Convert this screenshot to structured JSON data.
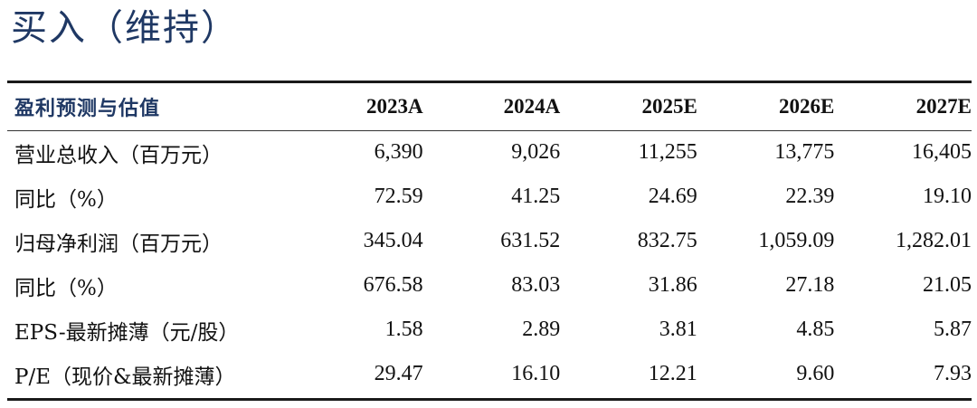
{
  "rating": {
    "text": "买入（维持）"
  },
  "table": {
    "header": {
      "label": "盈利预测与估值",
      "years": [
        "2023A",
        "2024A",
        "2025E",
        "2026E",
        "2027E"
      ]
    },
    "rows": [
      {
        "label": "营业总收入（百万元）",
        "values": [
          "6,390",
          "9,026",
          "11,255",
          "13,775",
          "16,405"
        ]
      },
      {
        "label": "同比（%）",
        "values": [
          "72.59",
          "41.25",
          "24.69",
          "22.39",
          "19.10"
        ]
      },
      {
        "label": "归母净利润（百万元）",
        "values": [
          "345.04",
          "631.52",
          "832.75",
          "1,059.09",
          "1,282.01"
        ]
      },
      {
        "label": "同比（%）",
        "values": [
          "676.58",
          "83.03",
          "31.86",
          "27.18",
          "21.05"
        ]
      },
      {
        "label": "EPS-最新摊薄（元/股）",
        "values": [
          "1.58",
          "2.89",
          "3.81",
          "4.85",
          "5.87"
        ]
      },
      {
        "label": "P/E（现价&最新摊薄）",
        "values": [
          "29.47",
          "16.10",
          "12.21",
          "9.60",
          "7.93"
        ]
      }
    ]
  }
}
